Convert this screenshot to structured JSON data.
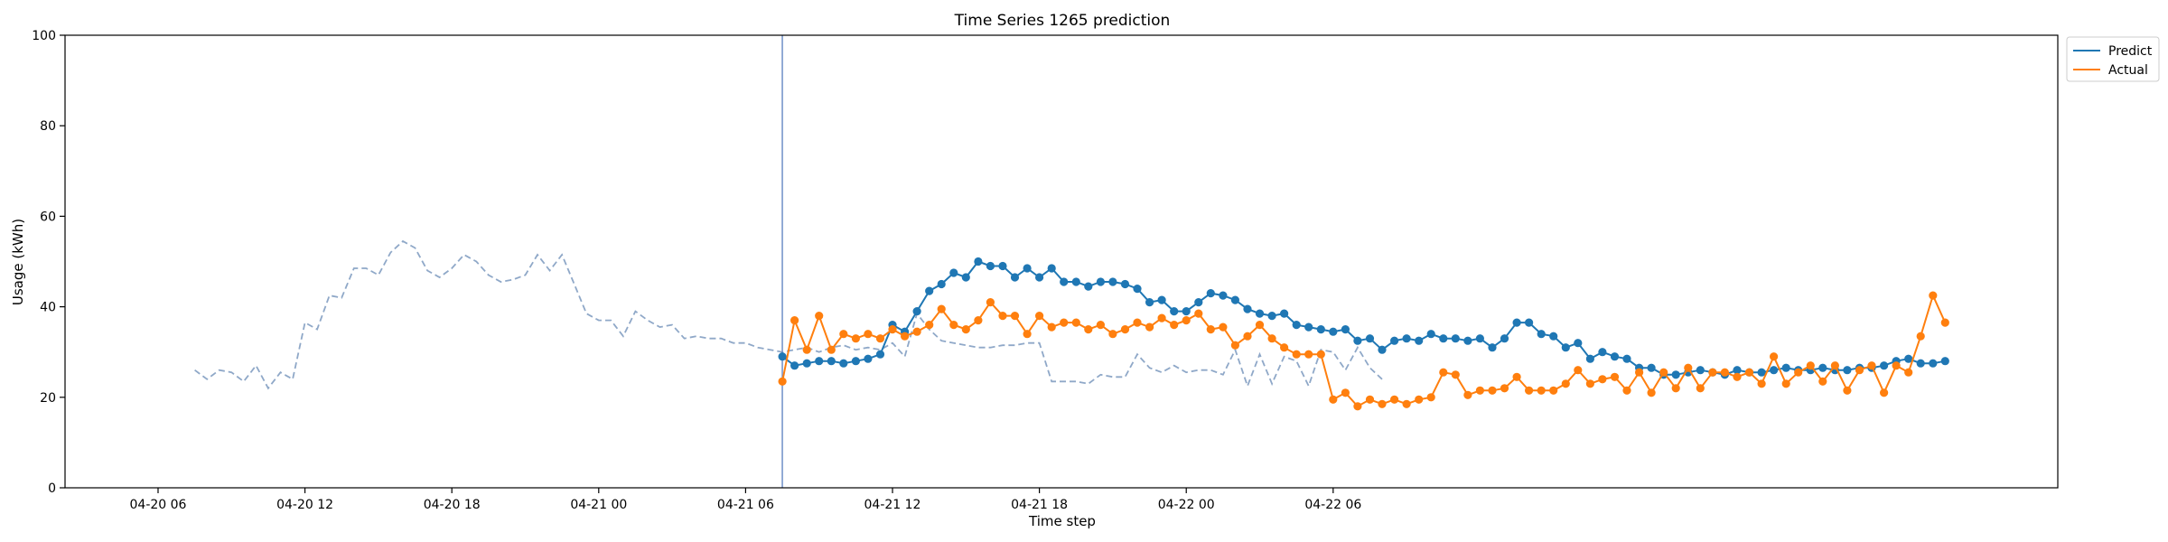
{
  "chart_data": {
    "type": "line",
    "title": "Time Series 1265 prediction",
    "xlabel": "Time step",
    "ylabel": "Usage (kWh)",
    "ylim": [
      0,
      100
    ],
    "yticks": [
      "0",
      "20",
      "40",
      "60",
      "80",
      "100"
    ],
    "xlim_hours": [
      -9.8,
      71.6
    ],
    "xticks": [
      {
        "label": "04-20 06",
        "h": -6
      },
      {
        "label": "04-20 12",
        "h": 0
      },
      {
        "label": "04-20 18",
        "h": 6
      },
      {
        "label": "04-21 00",
        "h": 12
      },
      {
        "label": "04-21 06",
        "h": 18
      },
      {
        "label": "04-21 12",
        "h": 24
      },
      {
        "label": "04-21 18",
        "h": 30
      },
      {
        "label": "04-22 00",
        "h": 36
      },
      {
        "label": "04-22 06",
        "h": 42
      }
    ],
    "x_start": "04-20 07:30",
    "x_step_minutes": 30,
    "forecast_start": "04-21 07:30",
    "legend_position": "upper-right-outside",
    "colors": {
      "predict": "#1f77b4",
      "actual": "#ff7f0e",
      "history": "#8fa8c8",
      "forecast_line": "#6f8fc8"
    },
    "history": {
      "name": "history",
      "values": [
        26,
        24,
        26,
        25.5,
        23.5,
        27,
        22,
        25.5,
        24,
        36.5,
        35,
        42.5,
        42,
        48.5,
        48.5,
        47,
        52,
        54.5,
        53,
        48,
        46.5,
        48.5,
        51.5,
        50,
        47,
        45.5,
        46,
        47,
        51.5,
        48,
        51.5,
        45,
        38.5,
        37,
        37,
        33.5,
        39,
        37,
        35.5,
        36,
        33,
        33.5,
        33,
        33,
        32,
        32,
        31,
        30.5,
        30,
        30.5,
        31,
        30,
        31,
        31.5,
        30.5,
        31,
        30.5,
        32,
        29,
        38.5,
        35,
        32.5,
        32,
        31.5,
        31,
        31,
        31.5,
        31.5,
        32,
        32,
        23.5,
        23.5,
        23.5,
        23,
        25,
        24.5,
        24.5,
        29.5,
        26.5,
        25.5,
        27,
        25.5,
        26,
        26,
        25,
        30.5,
        22.5,
        29.5,
        23,
        29,
        28,
        22.5,
        30.5,
        30,
        26,
        31,
        26.5,
        24
      ]
    },
    "series": [
      {
        "name": "Predict",
        "values": [
          29,
          27,
          27.5,
          28,
          28,
          27.5,
          28,
          28.5,
          29.5,
          36,
          34.5,
          39,
          43.5,
          45,
          47.5,
          46.5,
          50,
          49,
          49,
          46.5,
          48.5,
          46.5,
          48.5,
          45.5,
          45.5,
          44.5,
          45.5,
          45.5,
          45,
          44,
          41,
          41.5,
          39,
          39,
          41,
          43,
          42.5,
          41.5,
          39.5,
          38.5,
          38,
          38.5,
          36,
          35.5,
          35,
          34.5,
          35,
          32.5,
          33,
          30.5,
          32.5,
          33,
          32.5,
          34,
          33,
          33,
          32.5,
          33,
          31,
          33,
          36.5,
          36.5,
          34,
          33.5,
          31,
          32,
          28.5,
          30,
          29,
          28.5,
          26.5,
          26.5,
          25,
          25,
          25.5,
          26,
          25.5,
          25,
          26,
          25.5,
          25.5,
          26,
          26.5,
          26,
          26,
          26.5,
          26,
          26,
          26.5,
          26.5,
          27,
          28,
          28.5,
          27.5,
          27.5,
          28
        ]
      },
      {
        "name": "Actual",
        "values": [
          23.5,
          37,
          30.5,
          38,
          30.5,
          34,
          33,
          34,
          33,
          35,
          33.5,
          34.5,
          36,
          39.5,
          36,
          35,
          37,
          41,
          38,
          38,
          34,
          38,
          35.5,
          36.5,
          36.5,
          35,
          36,
          34,
          35,
          36.5,
          35.5,
          37.5,
          36,
          37,
          38.5,
          35,
          35.5,
          31.5,
          33.5,
          36,
          33,
          31,
          29.5,
          29.5,
          29.5,
          19.5,
          21,
          18,
          19.5,
          18.5,
          19.5,
          18.5,
          19.5,
          20,
          25.5,
          25,
          20.5,
          21.5,
          21.5,
          22,
          24.5,
          21.5,
          21.5,
          21.5,
          23,
          26,
          23,
          24,
          24.5,
          21.5,
          25.5,
          21,
          25.5,
          22,
          26.5,
          22,
          25.5,
          25.5,
          24.5,
          25.5,
          23,
          29,
          23,
          25.5,
          27,
          23.5,
          27,
          21.5,
          26,
          27,
          21,
          27,
          25.5,
          33.5,
          42.5,
          36.5
        ]
      }
    ]
  }
}
